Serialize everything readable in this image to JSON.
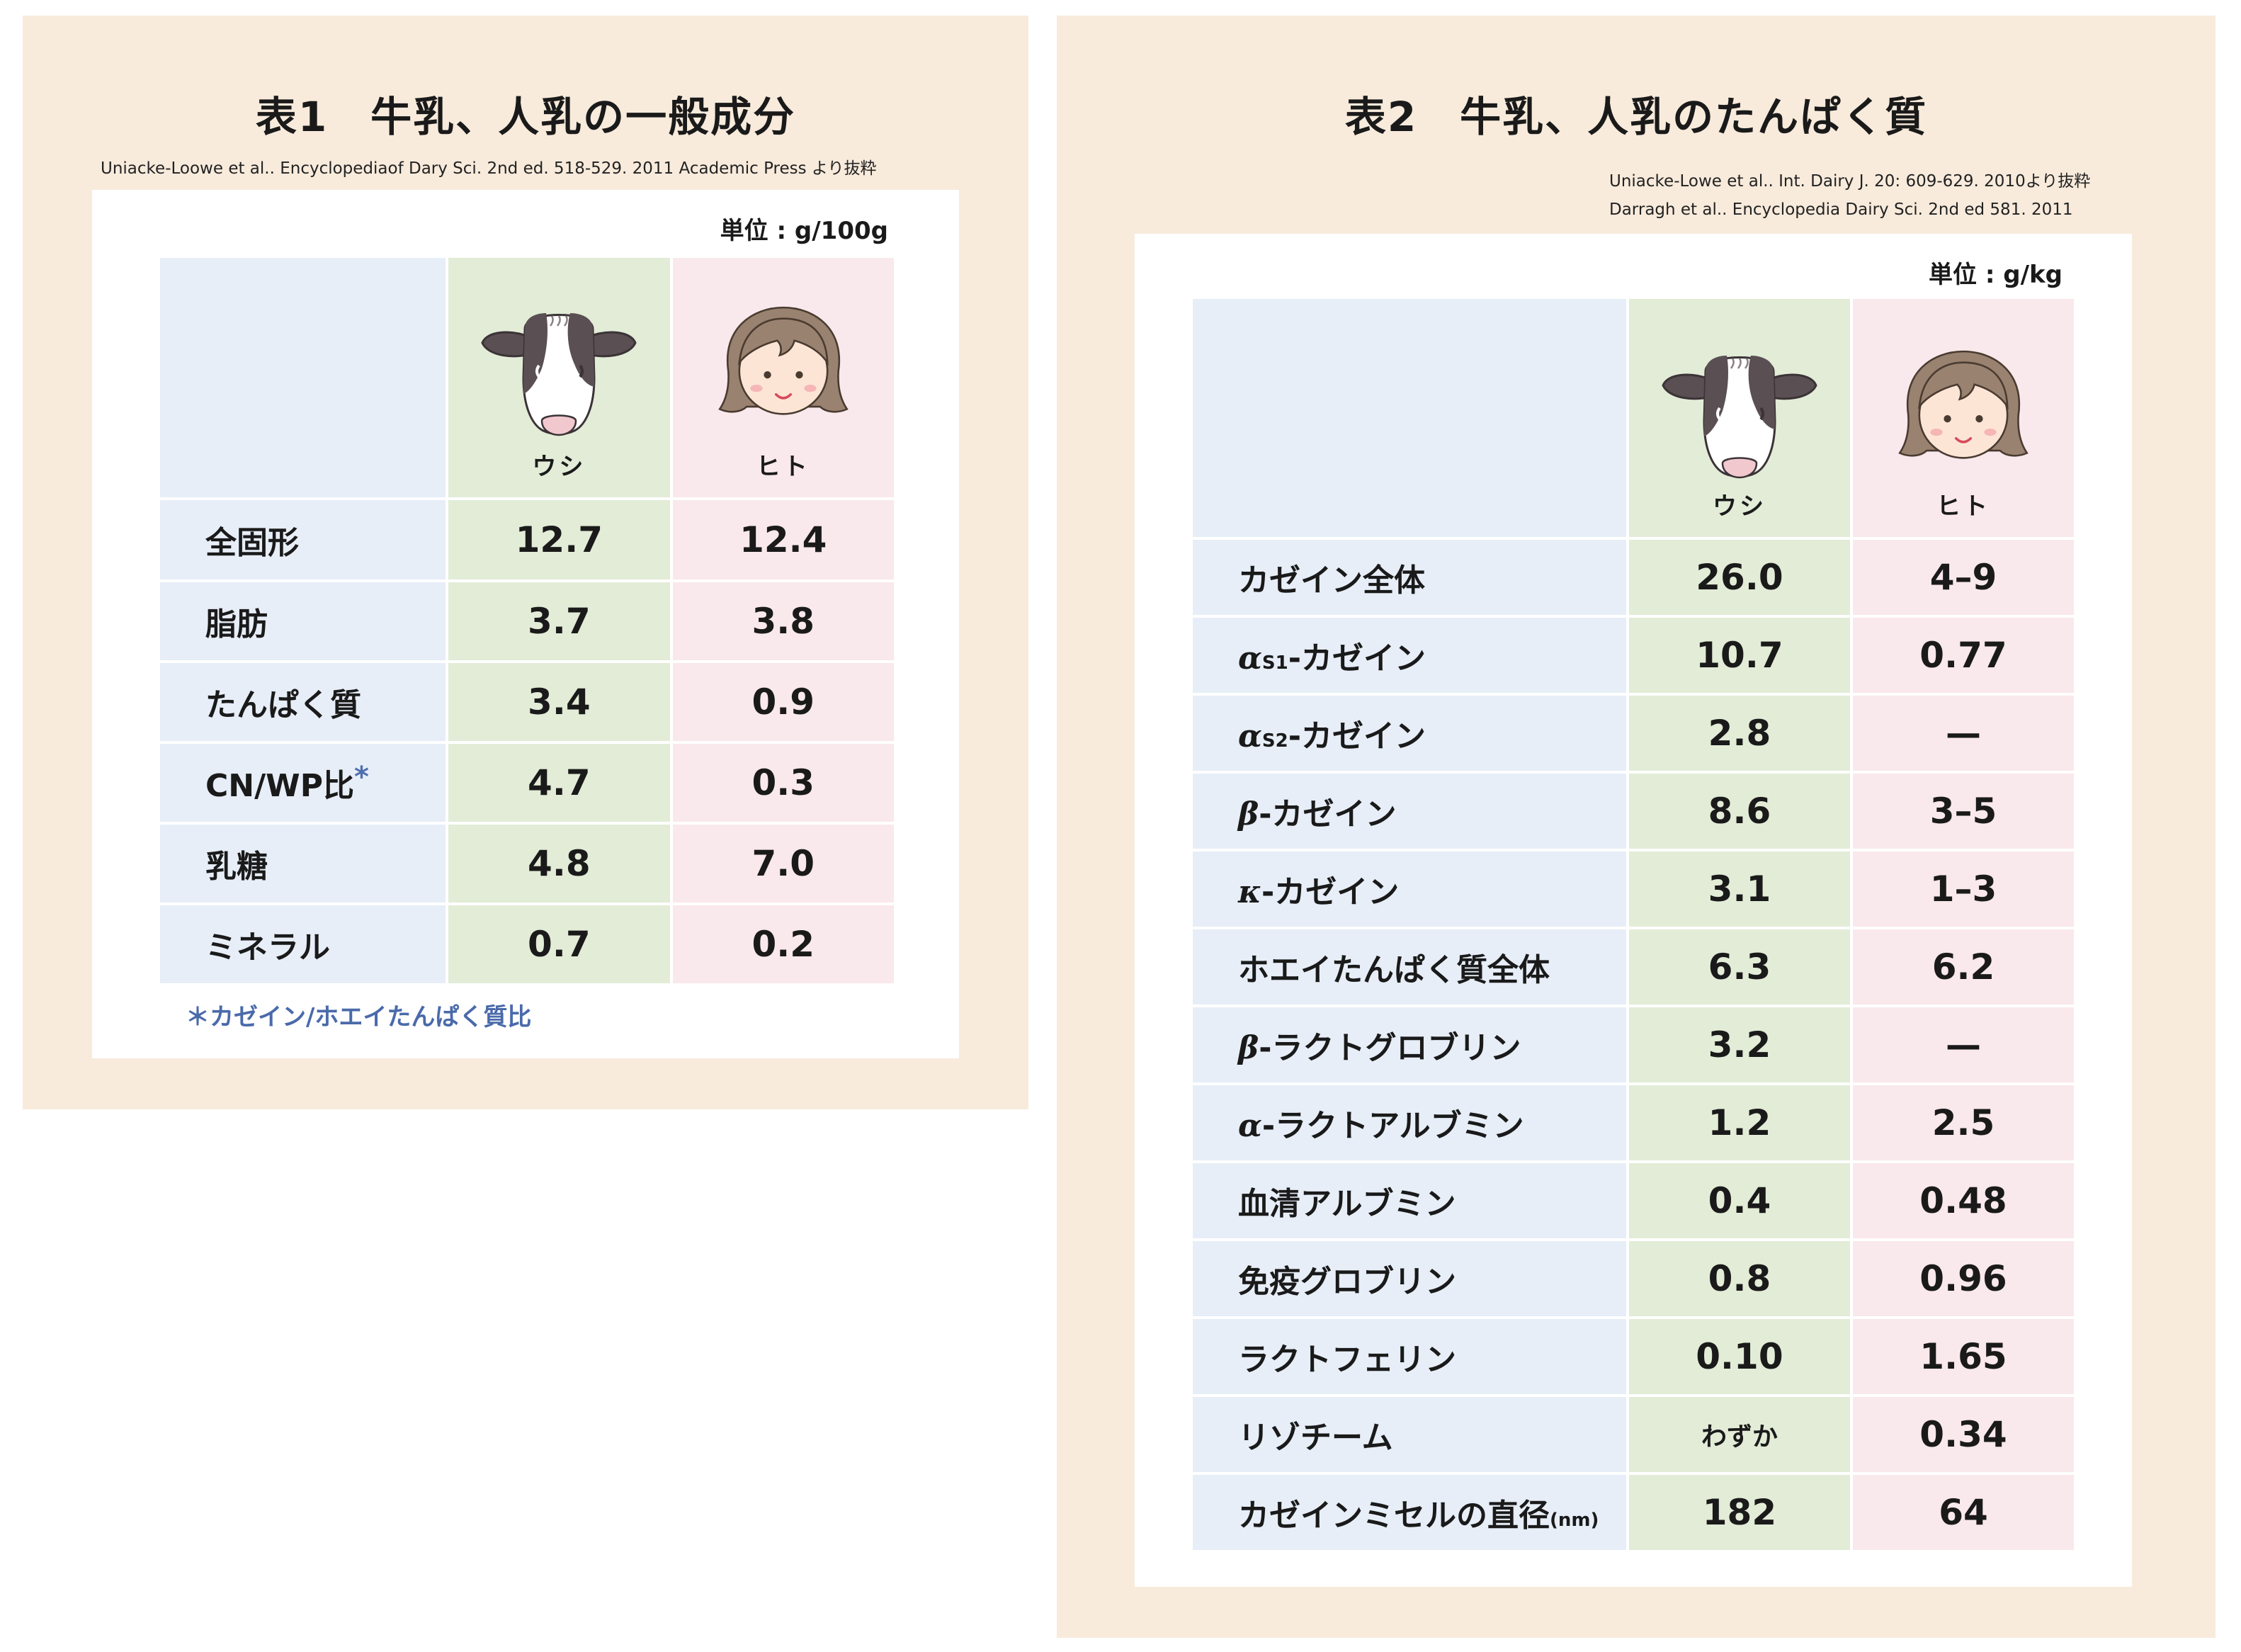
{
  "table1": {
    "title": "表1　牛乳、人乳の一般成分",
    "source": "Uniacke-Loowe et al.. Encyclopediaof Dary Sci. 2nd ed. 518-529. 2011 Academic Press より抜粋",
    "unit": "単位 : g/100g",
    "columns": {
      "cow": "ウシ",
      "human": "ヒト"
    },
    "rows": [
      {
        "label": "全固形",
        "cow": "12.7",
        "human": "12.4"
      },
      {
        "label": "脂肪",
        "cow": "3.7",
        "human": "3.8"
      },
      {
        "label": "たんぱく質",
        "cow": "3.4",
        "human": "0.9"
      },
      {
        "label": "CN/WP比",
        "cow": "4.7",
        "human": "0.3"
      },
      {
        "label": "乳糖",
        "cow": "4.8",
        "human": "7.0"
      },
      {
        "label": "ミネラル",
        "cow": "0.7",
        "human": "0.2"
      }
    ],
    "asterisk": "*",
    "footnote": "＊カゼイン/ホエイたんぱく質比"
  },
  "table2": {
    "title": "表2　牛乳、人乳のたんぱく質",
    "source_lines": [
      "Uniacke-Lowe et al.. Int. Dairy J. 20: 609-629. 2010より抜粋",
      "Darragh et al.. Encyclopedia Dairy Sci. 2nd ed 581. 2011"
    ],
    "unit": "単位 : g/kg",
    "columns": {
      "cow": "ウシ",
      "human": "ヒト"
    },
    "rows": [
      {
        "label": "カゼイン全体",
        "cow": "26.0",
        "human": "4–9"
      },
      {
        "greek": "α",
        "sub": "S1",
        "label": "-カゼイン",
        "cow": "10.7",
        "human": "0.77"
      },
      {
        "greek": "α",
        "sub": "S2",
        "label": "-カゼイン",
        "cow": "2.8",
        "human": "—"
      },
      {
        "greek": "β",
        "label": "-カゼイン",
        "cow": "8.6",
        "human": "3–5"
      },
      {
        "greek": "κ",
        "label": "-カゼイン",
        "cow": "3.1",
        "human": "1–3"
      },
      {
        "label": "ホエイたんぱく質全体",
        "cow": "6.3",
        "human": "6.2"
      },
      {
        "greek": "β",
        "label": "-ラクトグロブリン",
        "cow": "3.2",
        "human": "—"
      },
      {
        "greek": "α",
        "label": "-ラクトアルブミン",
        "cow": "1.2",
        "human": "2.5"
      },
      {
        "label": "血清アルブミン",
        "cow": "0.4",
        "human": "0.48"
      },
      {
        "label": "免疫グロブリン",
        "cow": "0.8",
        "human": "0.96"
      },
      {
        "label": "ラクトフェリン",
        "cow": "0.10",
        "human": "1.65"
      },
      {
        "label": "リゾチーム",
        "cow": "わずか",
        "human": "0.34"
      },
      {
        "label": "カゼインミセルの直径",
        "unit_suffix": "(nm)",
        "cow": "182",
        "human": "64"
      }
    ]
  },
  "colors": {
    "panel": "#f8ebdc",
    "label_col": "#e7eef8",
    "cow_col": "#e2ecd7",
    "human_col": "#f9e8ec",
    "footnote": "#4a6aaa"
  },
  "icons": {
    "cow": "cow-face-icon",
    "human": "girl-face-icon"
  }
}
